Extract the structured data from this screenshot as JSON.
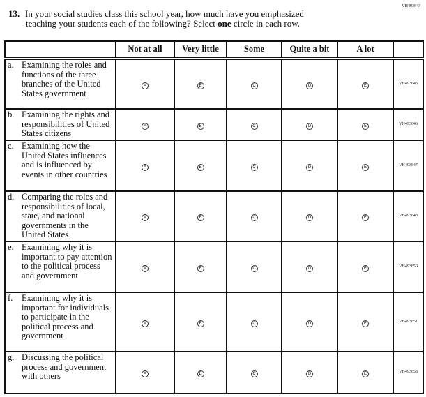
{
  "page_code": "VH493643",
  "question": {
    "number": "13.",
    "line1": "In your social studies class this school year, how much have you emphasized",
    "line2_pre": "teaching your students each of the following? Select ",
    "line2_bold": "one",
    "line2_post": " circle in each row."
  },
  "columns": [
    "Not at all",
    "Very little",
    "Some",
    "Quite a bit",
    "A lot"
  ],
  "bubble_letters": [
    "A",
    "B",
    "C",
    "D",
    "E"
  ],
  "rows": [
    {
      "letter": "a.",
      "text": "Examining the roles and functions of the three branches of the United States government",
      "code": "VH493645"
    },
    {
      "letter": "b.",
      "text": "Examining the rights and responsibilities of United States citizens",
      "code": "VH493646"
    },
    {
      "letter": "c.",
      "text": "Examining how the United States influences and is influenced by events in other countries",
      "code": "VH493647"
    },
    {
      "letter": "d.",
      "text": "Comparing the roles and responsibilities of local, state, and national governments in the United States",
      "code": "VH493648"
    },
    {
      "letter": "e.",
      "text": "Examining why it is important to pay attention to the political process and government",
      "code": "VH493650"
    },
    {
      "letter": "f.",
      "text": "Examining why it is important for individuals to participate in the political process and government",
      "code": "VH493651"
    },
    {
      "letter": "g.",
      "text": "Discussing the political process and government with others",
      "code": "VH493658"
    }
  ]
}
